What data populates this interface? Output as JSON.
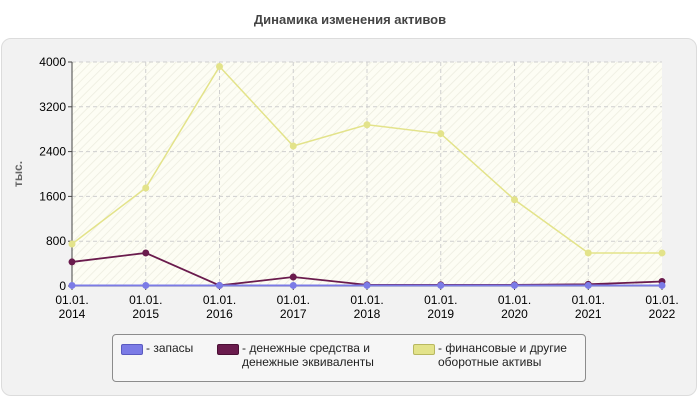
{
  "chart_data": {
    "type": "line",
    "title": "Динамика изменения активов",
    "ylabel": "тыс.",
    "xlabel": "",
    "categories": [
      "01.01.\n2014",
      "01.01.\n2015",
      "01.01.\n2016",
      "01.01.\n2017",
      "01.01.\n2018",
      "01.01.\n2019",
      "01.01.\n2020",
      "01.01.\n2021",
      "01.01.\n2022"
    ],
    "yticks": [
      "0",
      "800",
      "1600",
      "2400",
      "3200",
      "4000"
    ],
    "ylim": [
      0,
      4000
    ],
    "grid": true,
    "legend_position": "bottom",
    "series": [
      {
        "name": "- запасы",
        "color": "#7b7be6",
        "values": [
          10,
          10,
          10,
          10,
          10,
          10,
          10,
          10,
          10
        ]
      },
      {
        "name": "- денежные средства и денежные эквиваленты",
        "color": "#6a1b4d",
        "values": [
          430,
          590,
          10,
          160,
          20,
          20,
          20,
          30,
          80
        ]
      },
      {
        "name": "- финансовые и другие оборотные активы",
        "color": "#e3e38a",
        "values": [
          750,
          1750,
          3920,
          2500,
          2880,
          2720,
          1540,
          590,
          590
        ]
      }
    ]
  }
}
